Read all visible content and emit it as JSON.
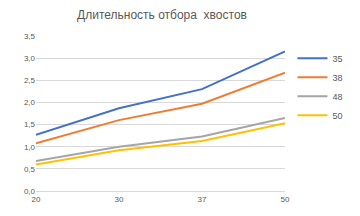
{
  "chart_data": {
    "type": "line",
    "title": "Длительность отбора  хвостов",
    "categories": [
      "20",
      "30",
      "37",
      "50"
    ],
    "series": [
      {
        "name": "35",
        "color": "#4472c4",
        "values": [
          1.27,
          1.87,
          2.3,
          3.15
        ]
      },
      {
        "name": "38",
        "color": "#ed7d31",
        "values": [
          1.08,
          1.6,
          1.97,
          2.67
        ]
      },
      {
        "name": "48",
        "color": "#a5a5a5",
        "values": [
          0.68,
          1.0,
          1.23,
          1.65
        ]
      },
      {
        "name": "50",
        "color": "#ffc000",
        "values": [
          0.6,
          0.92,
          1.13,
          1.53
        ]
      }
    ],
    "ylim": [
      0,
      3.5
    ],
    "yticks": [
      {
        "value": 0,
        "label": "0,0"
      },
      {
        "value": 0.5,
        "label": "0,5"
      },
      {
        "value": 1,
        "label": "1,0"
      },
      {
        "value": 1.5,
        "label": "1,5"
      },
      {
        "value": 2,
        "label": "2,0"
      },
      {
        "value": 2.5,
        "label": "2,5"
      },
      {
        "value": 3,
        "label": "3,0"
      },
      {
        "value": 3.5,
        "label": "3,5"
      }
    ],
    "grid": true,
    "legend": "right"
  }
}
